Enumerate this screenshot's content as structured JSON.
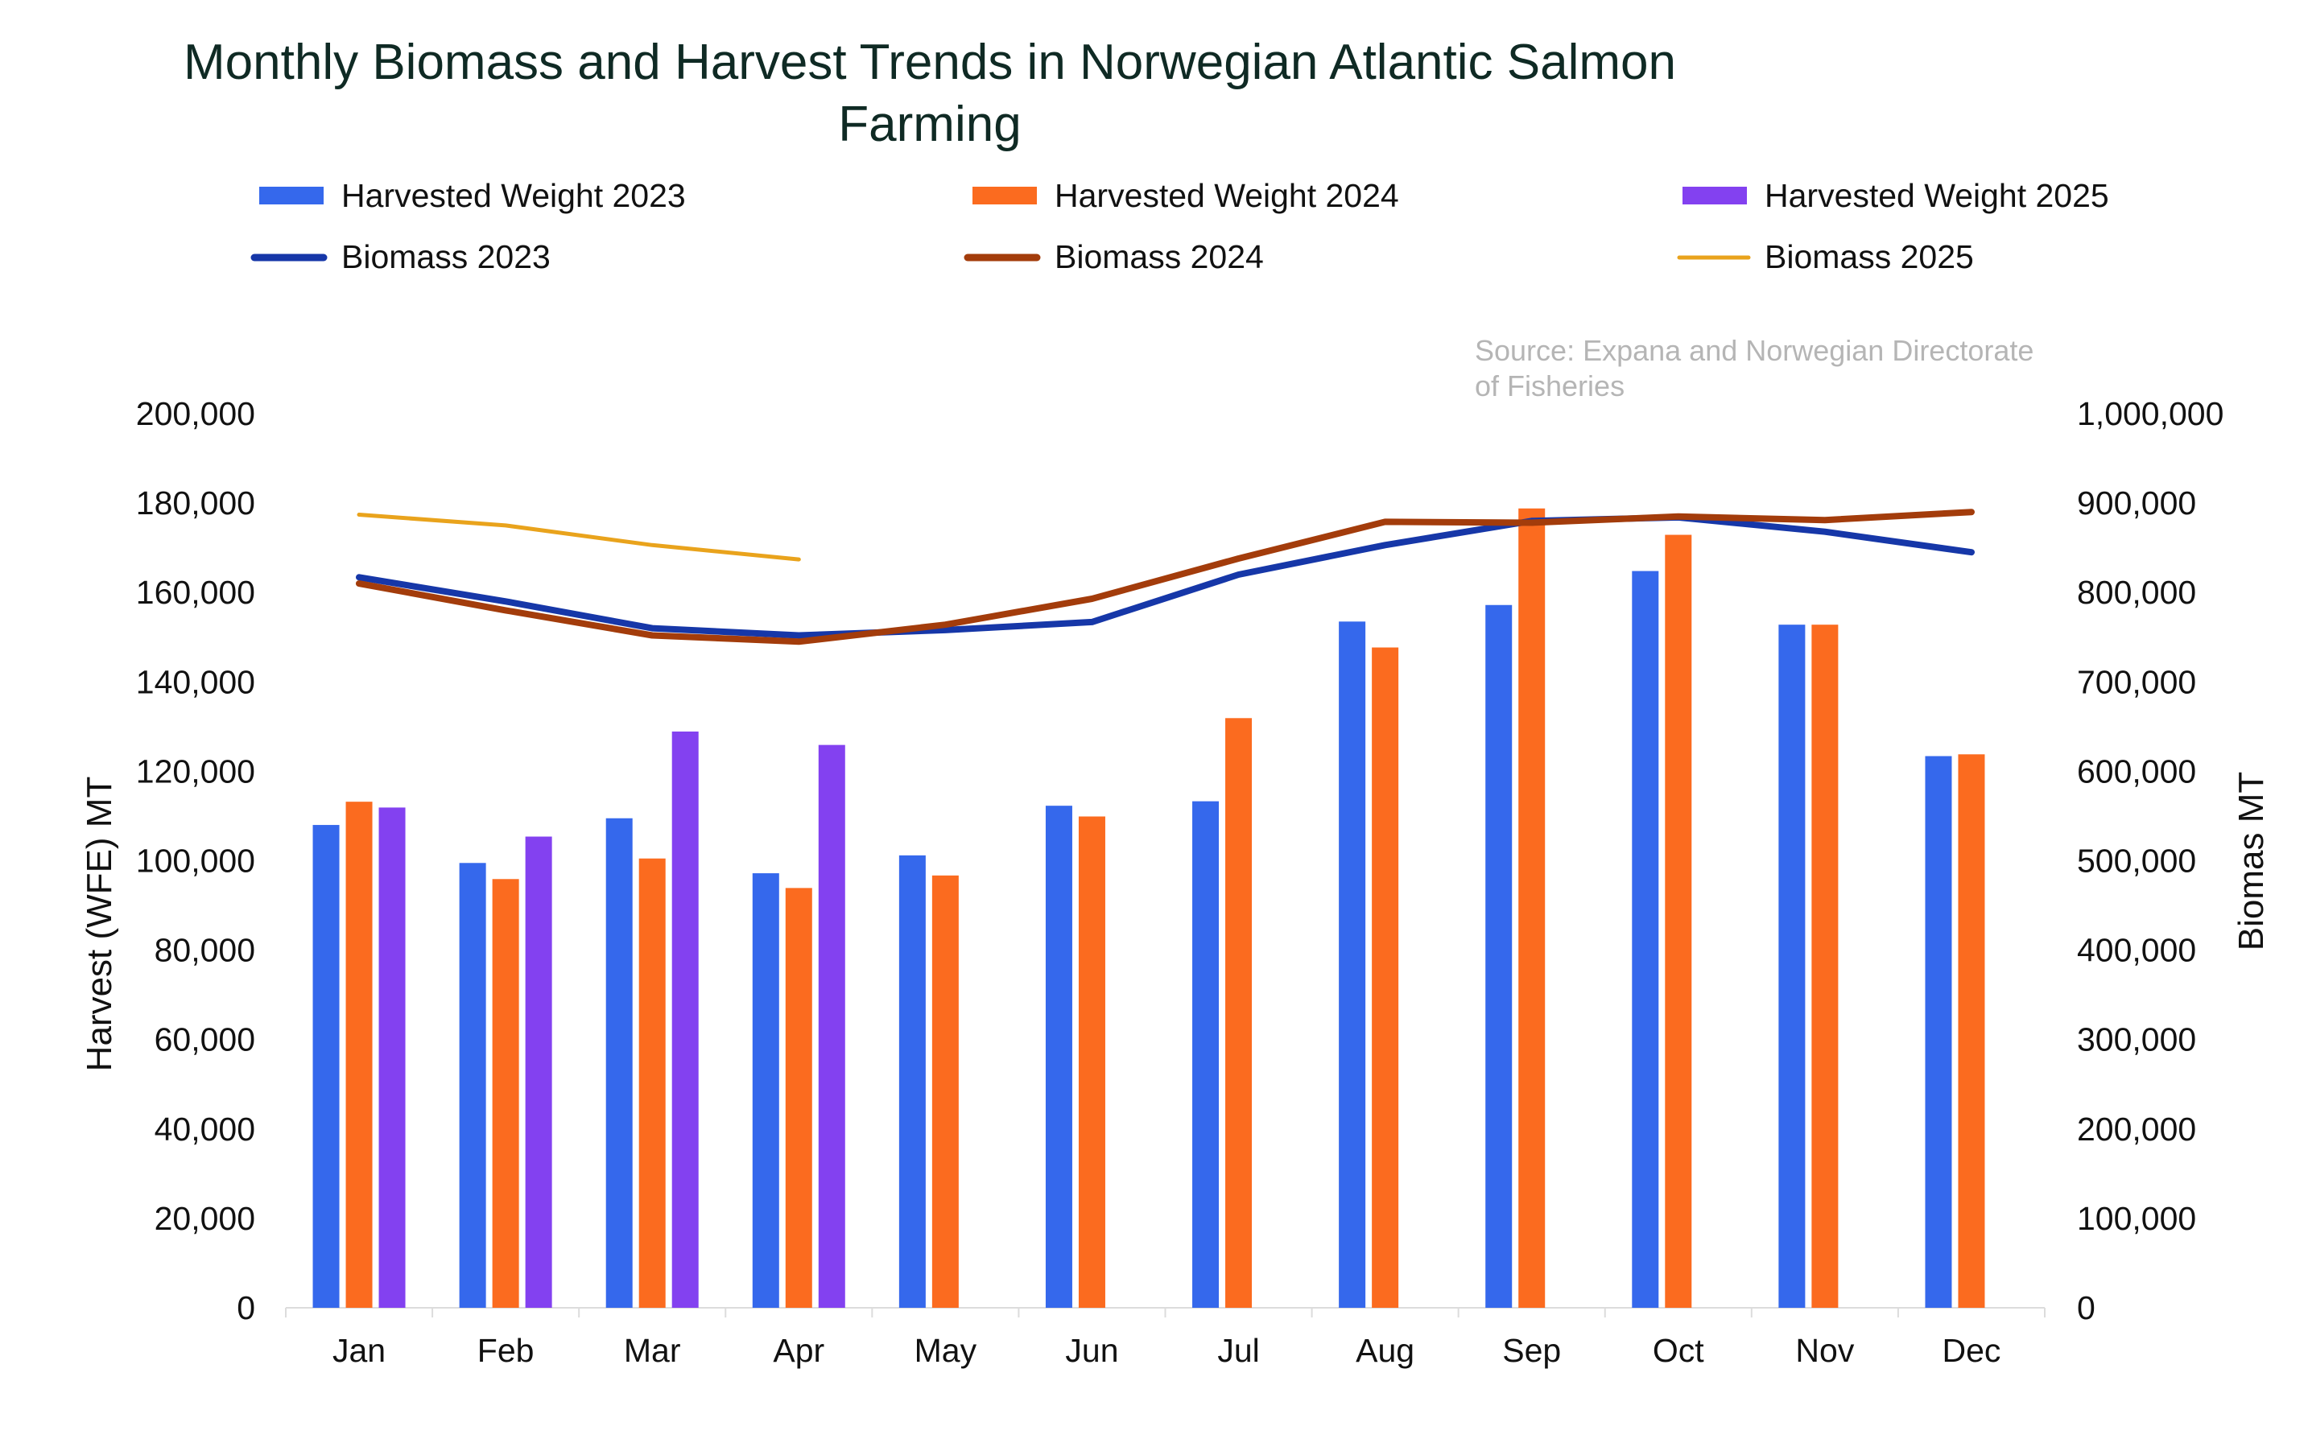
{
  "chart_data": {
    "type": "bar",
    "title_lines": [
      "Monthly Biomass and Harvest Trends in Norwegian Atlantic Salmon",
      "Farming"
    ],
    "source_lines": [
      "Source: Expana and Norwegian Directorate",
      "of Fisheries"
    ],
    "categories": [
      "Jan",
      "Feb",
      "Mar",
      "Apr",
      "May",
      "Jun",
      "Jul",
      "Aug",
      "Sep",
      "Oct",
      "Nov",
      "Dec"
    ],
    "ylabel": "Harvest (WFE) MT",
    "y2label": "Biomas MT",
    "ylim": [
      0,
      200000
    ],
    "y2lim": [
      0,
      1000000
    ],
    "yticks": [
      "0",
      "20,000",
      "40,000",
      "60,000",
      "80,000",
      "100,000",
      "120,000",
      "140,000",
      "160,000",
      "180,000",
      "200,000"
    ],
    "y2ticks": [
      "0",
      "100,000",
      "200,000",
      "300,000",
      "400,000",
      "500,000",
      "600,000",
      "700,000",
      "800,000",
      "900,000",
      "1,000,000"
    ],
    "grid": false,
    "legend_position": "top",
    "bar_series": [
      {
        "name": "Harvested Weight  2023",
        "color": "#3568ec",
        "values": [
          108000,
          99500,
          109500,
          97200,
          101200,
          112300,
          113300,
          153500,
          157200,
          164800,
          152800,
          123400
        ]
      },
      {
        "name": "Harvested Weight  2024",
        "color": "#fb6b1f",
        "values": [
          113200,
          95900,
          100500,
          93900,
          96700,
          109900,
          131900,
          147700,
          178800,
          172900,
          152800,
          123800
        ]
      },
      {
        "name": "Harvested Weight  2025",
        "color": "#8341f0",
        "values": [
          111900,
          105400,
          128900,
          125900,
          null,
          null,
          null,
          null,
          null,
          null,
          null,
          null
        ]
      }
    ],
    "line_series": [
      {
        "name": "Biomass  2023",
        "color": "#1637a8",
        "values": [
          817000,
          790000,
          760000,
          752000,
          758000,
          767000,
          820000,
          853000,
          880000,
          884000,
          868000,
          845000
        ]
      },
      {
        "name": "Biomass  2024",
        "color": "#a33c0b",
        "values": [
          810000,
          780000,
          752000,
          745000,
          764000,
          793000,
          838000,
          879000,
          878000,
          885000,
          881000,
          890000
        ]
      },
      {
        "name": "Biomass  2025",
        "color": "#e9a31c",
        "values": [
          887000,
          875000,
          853000,
          837000,
          null,
          null,
          null,
          null,
          null,
          null,
          null,
          null
        ]
      }
    ]
  }
}
